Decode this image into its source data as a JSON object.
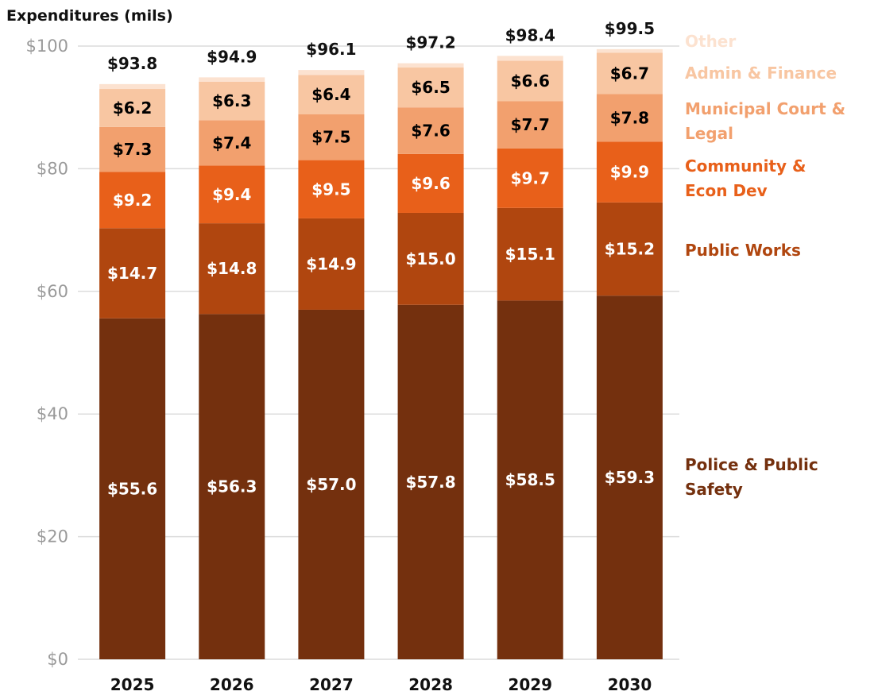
{
  "chart_data": {
    "type": "stacked_bar",
    "title": "Expenditures (mils)",
    "categories": [
      "2025",
      "2026",
      "2027",
      "2028",
      "2029",
      "2030"
    ],
    "series": [
      {
        "name": "Police & Public Safety",
        "color": "#74300e",
        "label_color": "#ffffff",
        "values": [
          55.6,
          56.3,
          57.0,
          57.8,
          58.5,
          59.3
        ],
        "value_labels": [
          "$55.6",
          "$56.3",
          "$57.0",
          "$57.8",
          "$58.5",
          "$59.3"
        ]
      },
      {
        "name": "Public Works",
        "color": "#b0460f",
        "label_color": "#ffffff",
        "values": [
          14.7,
          14.8,
          14.9,
          15.0,
          15.1,
          15.2
        ],
        "value_labels": [
          "$14.7",
          "$14.8",
          "$14.9",
          "$15.0",
          "$15.1",
          "$15.2"
        ]
      },
      {
        "name": "Community & Econ Dev",
        "color": "#e8601a",
        "label_color": "#ffffff",
        "values": [
          9.2,
          9.4,
          9.5,
          9.6,
          9.7,
          9.9
        ],
        "value_labels": [
          "$9.2",
          "$9.4",
          "$9.5",
          "$9.6",
          "$9.7",
          "$9.9"
        ]
      },
      {
        "name": "Municipal Court & Legal",
        "color": "#f2a06e",
        "label_color": "#000000",
        "values": [
          7.3,
          7.4,
          7.5,
          7.6,
          7.7,
          7.8
        ],
        "value_labels": [
          "$7.3",
          "$7.4",
          "$7.5",
          "$7.6",
          "$7.7",
          "$7.8"
        ]
      },
      {
        "name": "Admin & Finance",
        "color": "#f8c6a2",
        "label_color": "#000000",
        "values": [
          6.2,
          6.3,
          6.4,
          6.5,
          6.6,
          6.7
        ],
        "value_labels": [
          "$6.2",
          "$6.3",
          "$6.4",
          "$6.5",
          "$6.6",
          "$6.7"
        ]
      },
      {
        "name": "Other",
        "color": "#fce2d0",
        "values": [
          0.8,
          0.7,
          0.8,
          0.7,
          0.8,
          0.6
        ]
      }
    ],
    "totals": [
      93.8,
      94.9,
      96.1,
      97.2,
      98.4,
      99.5
    ],
    "total_labels": [
      "$93.8",
      "$94.9",
      "$96.1",
      "$97.2",
      "$98.4",
      "$99.5"
    ],
    "ylim": [
      0,
      100
    ],
    "yticks": [
      {
        "value": 0,
        "label": "$0"
      },
      {
        "value": 20,
        "label": "$20"
      },
      {
        "value": 40,
        "label": "$40"
      },
      {
        "value": 60,
        "label": "$60"
      },
      {
        "value": 80,
        "label": "$80"
      },
      {
        "value": 100,
        "label": "$100"
      }
    ],
    "grid": true,
    "legend": "right"
  }
}
